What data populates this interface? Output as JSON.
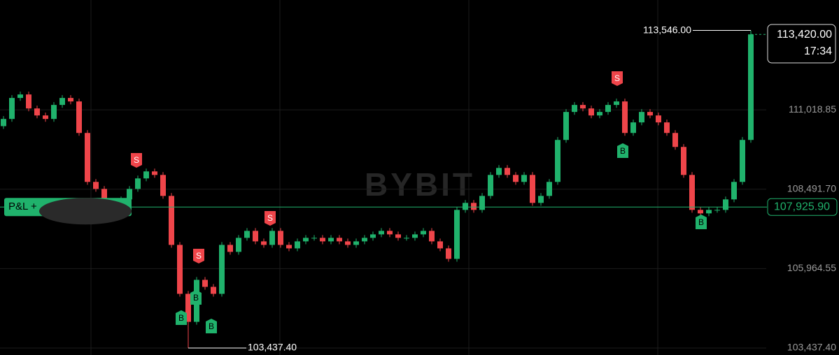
{
  "chart_data": {
    "type": "candlestick",
    "watermark": "BYBIT",
    "open": [
      110500,
      110729,
      111397,
      111508,
      111063,
      110840,
      110729,
      111175,
      111397,
      111286,
      110283,
      108725,
      108502,
      108057,
      107834,
      108168,
      108502,
      108836,
      109059,
      108947,
      108279,
      106720,
      105162,
      104271,
      105607,
      105384,
      105162,
      106720,
      106498,
      106944,
      107166,
      106832,
      106720,
      107166,
      106720,
      106609,
      106832,
      106944,
      106944,
      106832,
      106944,
      106832,
      106720,
      106832,
      106944,
      107055,
      107166,
      107055,
      106944,
      106944,
      107055,
      107166,
      106832,
      106609,
      106275,
      107834,
      108057,
      107834,
      108279,
      108947,
      109170,
      108947,
      108725,
      108947,
      108057,
      108279,
      108725,
      110061,
      110952,
      111175,
      111063,
      110840,
      110952,
      111175,
      111286,
      110283,
      110619,
      110952,
      110840,
      110619,
      110283,
      109838,
      108947,
      107834,
      107723,
      107834,
      107834,
      108168,
      108725,
      110061
    ],
    "high": [
      110819,
      111487,
      111598,
      111598,
      111153,
      110930,
      111265,
      111487,
      111487,
      111376,
      110373,
      108815,
      108592,
      108147,
      108258,
      108592,
      108926,
      109149,
      109149,
      109037,
      108369,
      106810,
      105252,
      105697,
      105697,
      105474,
      106810,
      106810,
      107034,
      107256,
      107256,
      106922,
      107256,
      107256,
      106810,
      106922,
      107034,
      107034,
      107034,
      107034,
      107034,
      106922,
      106922,
      107034,
      107145,
      107256,
      107256,
      107145,
      107034,
      107145,
      107256,
      107256,
      106922,
      106699,
      107924,
      108147,
      108147,
      108369,
      109037,
      109260,
      109260,
      109037,
      109037,
      109037,
      108369,
      108815,
      110151,
      111042,
      111265,
      111265,
      111153,
      111042,
      111265,
      111376,
      111376,
      110709,
      111042,
      111042,
      110930,
      110709,
      110373,
      109928,
      109037,
      107924,
      107924,
      107924,
      108258,
      108815,
      110151,
      113546
    ],
    "low": [
      110410,
      110639,
      111307,
      110973,
      110750,
      110639,
      110639,
      111085,
      111196,
      110193,
      108635,
      108412,
      107967,
      107744,
      107744,
      108078,
      108412,
      108746,
      108857,
      108189,
      106630,
      105072,
      103437.4,
      104181,
      105294,
      105072,
      105072,
      106408,
      106408,
      106854,
      106742,
      106630,
      106630,
      106630,
      106519,
      106519,
      106742,
      106854,
      106742,
      106742,
      106742,
      106630,
      106630,
      106742,
      106854,
      106965,
      106965,
      106854,
      106854,
      106854,
      106965,
      106742,
      106519,
      106185,
      106185,
      107744,
      107744,
      107744,
      108189,
      108857,
      108857,
      108635,
      108635,
      107967,
      107967,
      108189,
      108635,
      109971,
      110862,
      110973,
      110750,
      110750,
      110862,
      111085,
      110193,
      110193,
      110529,
      110750,
      110529,
      110193,
      109748,
      108857,
      107744,
      107633,
      107633,
      107744,
      107744,
      108078,
      108635,
      109971
    ],
    "close": [
      110729,
      111397,
      111508,
      111063,
      110840,
      110729,
      111175,
      111397,
      111286,
      110283,
      108725,
      108502,
      108057,
      107834,
      108168,
      108502,
      108836,
      109059,
      108947,
      108279,
      106720,
      105162,
      104271,
      105607,
      105384,
      105162,
      106720,
      106498,
      106944,
      107166,
      106832,
      106720,
      107166,
      106720,
      106609,
      106832,
      106944,
      106944,
      106832,
      106944,
      106832,
      106720,
      106832,
      106944,
      107055,
      107166,
      107055,
      106944,
      106944,
      107055,
      107166,
      106832,
      106609,
      106275,
      107834,
      108057,
      107834,
      108279,
      108947,
      109170,
      108947,
      108725,
      108947,
      108057,
      108279,
      108725,
      110061,
      110952,
      111175,
      111063,
      110840,
      110952,
      111175,
      111286,
      110283,
      110619,
      110952,
      110840,
      110619,
      110283,
      109838,
      108947,
      107834,
      107723,
      107834,
      107834,
      108168,
      108725,
      110061,
      113420
    ],
    "up_color": "#20b26c",
    "down_color": "#ef454a",
    "ylim": [
      103215,
      114515
    ],
    "yticks": [
      {
        "value": 103437.4,
        "label": "103,437.40"
      },
      {
        "value": 105964.55,
        "label": "105,964.55"
      },
      {
        "value": 108491.7,
        "label": "108,491.70"
      },
      {
        "value": 111018.85,
        "label": "111,018.85"
      }
    ],
    "grid": true,
    "last_price": {
      "value": 113420,
      "label": "113,420.00",
      "time": "17:34"
    },
    "position_line": {
      "value": 107925.9,
      "label": "107,925.90",
      "pnl_label": "P&L +"
    },
    "high_mark": {
      "value": 113546,
      "label": "113,546.00"
    },
    "low_mark": {
      "value": 103437.4,
      "label": "103,437.40"
    },
    "trades": [
      {
        "side": "S"
      },
      {
        "side": "S"
      },
      {
        "side": "S"
      },
      {
        "side": "S"
      },
      {
        "side": "B"
      },
      {
        "side": "B"
      },
      {
        "side": "B"
      },
      {
        "side": "B"
      },
      {
        "side": "B"
      }
    ]
  }
}
